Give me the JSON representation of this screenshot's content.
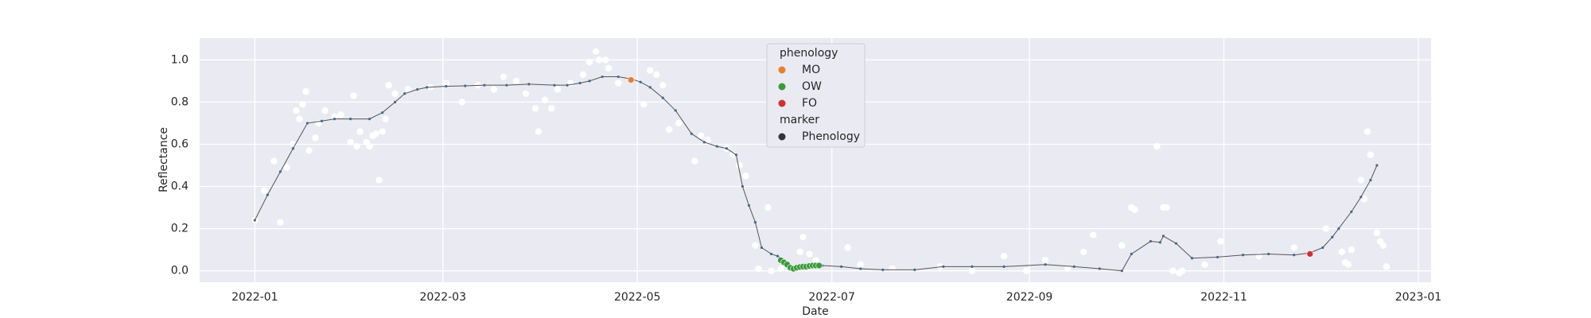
{
  "chart_data": {
    "type": "line",
    "x_label": "Date",
    "y_label": "Reflectance",
    "xlim": [
      -17.3,
      369
    ],
    "ylim": [
      -0.054,
      1.103
    ],
    "xticks": [
      {
        "value": 0,
        "label": "2022-01"
      },
      {
        "value": 59,
        "label": "2022-03"
      },
      {
        "value": 120,
        "label": "2022-05"
      },
      {
        "value": 181,
        "label": "2022-07"
      },
      {
        "value": 243,
        "label": "2022-09"
      },
      {
        "value": 304,
        "label": "2022-11"
      },
      {
        "value": 365,
        "label": "2023-01"
      }
    ],
    "yticks": [
      {
        "value": 0,
        "label": "0.0"
      },
      0.2,
      0.4,
      0.6,
      0.8,
      {
        "value": 1,
        "label": "1.0"
      }
    ],
    "grid": true,
    "legend_title": "phenology",
    "marker_legend": {
      "title": "marker",
      "label": "Phenology",
      "color": "#333333"
    },
    "series": [
      {
        "kind": "scatter",
        "color": "#ffffff",
        "x": [
          0,
          3,
          6,
          8,
          10,
          12,
          13,
          14,
          15,
          16,
          17,
          19,
          20,
          22,
          25,
          27,
          30,
          31,
          32,
          33,
          35,
          36,
          37,
          38,
          39,
          40,
          41,
          42,
          44,
          48,
          55,
          60,
          65,
          70,
          75,
          78,
          82,
          85,
          88,
          89,
          91,
          93,
          95,
          99,
          103,
          105,
          107,
          108,
          110,
          111,
          114,
          122,
          124,
          126,
          128,
          130,
          133,
          138,
          140,
          142,
          148,
          150,
          152,
          154,
          157,
          158,
          161,
          162,
          165,
          171,
          172,
          174,
          176,
          186,
          190,
          200,
          215,
          225,
          235,
          242,
          248,
          255,
          260,
          263,
          272,
          275,
          276,
          283,
          285,
          286,
          288,
          290,
          291,
          298,
          303,
          315,
          326,
          336,
          341,
          342,
          343,
          344,
          347,
          348,
          349,
          350,
          352,
          353,
          354,
          355
        ],
        "values": [
          0.24,
          0.38,
          0.52,
          0.23,
          0.49,
          0.6,
          0.76,
          0.72,
          0.79,
          0.85,
          0.57,
          0.63,
          0.7,
          0.76,
          0.73,
          0.74,
          0.61,
          0.83,
          0.59,
          0.66,
          0.61,
          0.59,
          0.64,
          0.65,
          0.43,
          0.66,
          0.72,
          0.88,
          0.84,
          0.86,
          0.87,
          0.89,
          0.8,
          0.88,
          0.86,
          0.92,
          0.9,
          0.84,
          0.77,
          0.66,
          0.81,
          0.77,
          0.86,
          0.89,
          0.93,
          0.99,
          1.04,
          1.0,
          1.0,
          0.96,
          0.89,
          0.79,
          0.95,
          0.93,
          0.88,
          0.67,
          0.7,
          0.52,
          0.64,
          0.62,
          0.58,
          0.55,
          0.5,
          0.45,
          0.12,
          0.01,
          0.3,
          0.0,
          0.01,
          0.09,
          0.16,
          0.08,
          0.05,
          0.11,
          0.03,
          0.01,
          0.02,
          0.0,
          0.07,
          0.0,
          0.05,
          0.01,
          0.09,
          0.17,
          0.12,
          0.3,
          0.29,
          0.59,
          0.3,
          0.3,
          0.0,
          -0.01,
          0.0,
          0.03,
          0.14,
          0.07,
          0.11,
          0.2,
          0.09,
          0.04,
          0.03,
          0.1,
          0.43,
          0.34,
          0.66,
          0.55,
          0.18,
          0.14,
          0.12,
          0.02
        ]
      },
      {
        "kind": "line",
        "color": "#555555",
        "marker_color": "#3d6c8e",
        "x": [
          0,
          4,
          8,
          12,
          16.5,
          21,
          25,
          30,
          36,
          40,
          44,
          47,
          51,
          54,
          60,
          66,
          72,
          79,
          86,
          94,
          98,
          102,
          105,
          109,
          114,
          118,
          121,
          124,
          128,
          132,
          137,
          141,
          145,
          148,
          151,
          153,
          155,
          157,
          159,
          162,
          164,
          167,
          168,
          172,
          175,
          178,
          184,
          190,
          197,
          207,
          216,
          225,
          235,
          248,
          257,
          265,
          272,
          275,
          281,
          284,
          285,
          289,
          294,
          302,
          310,
          318,
          326,
          331,
          335,
          338,
          340,
          344,
          347,
          350,
          352
        ],
        "values": [
          0.24,
          0.36,
          0.47,
          0.58,
          0.7,
          0.71,
          0.72,
          0.72,
          0.72,
          0.75,
          0.8,
          0.84,
          0.86,
          0.87,
          0.875,
          0.877,
          0.88,
          0.88,
          0.885,
          0.88,
          0.88,
          0.89,
          0.9,
          0.92,
          0.92,
          0.91,
          0.895,
          0.87,
          0.82,
          0.76,
          0.65,
          0.61,
          0.59,
          0.58,
          0.55,
          0.4,
          0.31,
          0.23,
          0.11,
          0.08,
          0.07,
          0.04,
          0.015,
          0.02,
          0.025,
          0.025,
          0.02,
          0.01,
          0.005,
          0.005,
          0.02,
          0.02,
          0.02,
          0.03,
          0.02,
          0.01,
          0.0,
          0.08,
          0.14,
          0.135,
          0.165,
          0.13,
          0.06,
          0.065,
          0.075,
          0.08,
          0.075,
          0.085,
          0.11,
          0.16,
          0.2,
          0.28,
          0.35,
          0.43,
          0.5
        ]
      },
      {
        "kind": "scatter",
        "name": "MO",
        "color": "#e8802a",
        "x": [
          118
        ],
        "values": [
          0.905
        ]
      },
      {
        "kind": "scatter",
        "name": "OW",
        "color": "#3a9a3a",
        "x": [
          165,
          166,
          167,
          168,
          169,
          170,
          171,
          172,
          173,
          174,
          175,
          176,
          177
        ],
        "values": [
          0.05,
          0.04,
          0.03,
          0.015,
          0.01,
          0.015,
          0.018,
          0.02,
          0.02,
          0.023,
          0.025,
          0.025,
          0.025
        ]
      },
      {
        "kind": "scatter",
        "name": "FO",
        "color": "#d03030",
        "x": [
          331
        ],
        "values": [
          0.08
        ]
      }
    ]
  }
}
